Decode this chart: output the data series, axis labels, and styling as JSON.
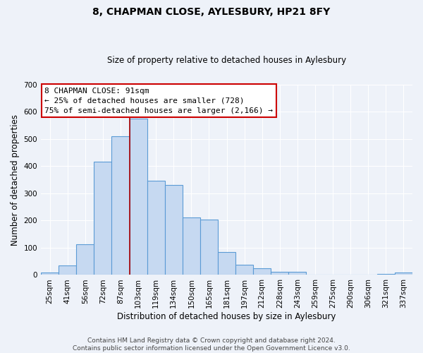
{
  "title": "8, CHAPMAN CLOSE, AYLESBURY, HP21 8FY",
  "subtitle": "Size of property relative to detached houses in Aylesbury",
  "xlabel": "Distribution of detached houses by size in Aylesbury",
  "ylabel": "Number of detached properties",
  "bar_labels": [
    "25sqm",
    "41sqm",
    "56sqm",
    "72sqm",
    "87sqm",
    "103sqm",
    "119sqm",
    "134sqm",
    "150sqm",
    "165sqm",
    "181sqm",
    "197sqm",
    "212sqm",
    "228sqm",
    "243sqm",
    "259sqm",
    "275sqm",
    "290sqm",
    "306sqm",
    "321sqm",
    "337sqm"
  ],
  "bar_values": [
    8,
    35,
    113,
    417,
    510,
    575,
    345,
    330,
    212,
    204,
    83,
    38,
    25,
    12,
    12,
    0,
    0,
    0,
    0,
    5,
    8
  ],
  "bar_color": "#c6d9f1",
  "bar_edge_color": "#5b9bd5",
  "vline_x": 4.5,
  "vline_color": "#aa0000",
  "annotation_text": "8 CHAPMAN CLOSE: 91sqm\n← 25% of detached houses are smaller (728)\n75% of semi-detached houses are larger (2,166) →",
  "annotation_box_facecolor": "#ffffff",
  "annotation_box_edgecolor": "#cc0000",
  "ylim": [
    0,
    700
  ],
  "yticks": [
    0,
    100,
    200,
    300,
    400,
    500,
    600,
    700
  ],
  "footer_line1": "Contains HM Land Registry data © Crown copyright and database right 2024.",
  "footer_line2": "Contains public sector information licensed under the Open Government Licence v3.0.",
  "background_color": "#eef2f9",
  "grid_color": "#ffffff",
  "title_fontsize": 10,
  "subtitle_fontsize": 8.5,
  "xlabel_fontsize": 8.5,
  "ylabel_fontsize": 8.5,
  "tick_fontsize": 7.5,
  "annot_fontsize": 8,
  "footer_fontsize": 6.5
}
